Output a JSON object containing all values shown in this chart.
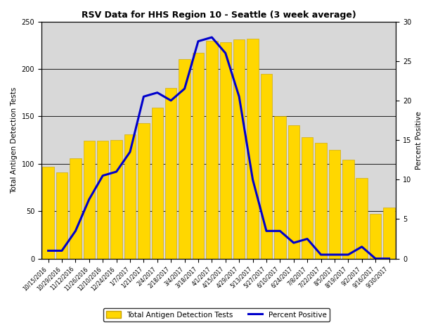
{
  "title": "RSV Data for HHS Region 10 - Seattle (3 week average)",
  "ylabel_left": "Total Antigen Detection Tests",
  "ylabel_right": "Percent Positive",
  "bar_color": "#FFD700",
  "bar_edge_color": "#C8A000",
  "line_color": "#0000CC",
  "bg_color": "#D8D8D8",
  "ylim_left": [
    0,
    250
  ],
  "ylim_right": [
    0,
    30
  ],
  "yticks_left": [
    0,
    50,
    100,
    150,
    200,
    250
  ],
  "yticks_right": [
    0,
    5,
    10,
    15,
    20,
    25,
    30
  ],
  "categories": [
    "10/15/2016",
    "10/29/2016",
    "11/12/2016",
    "11/26/2016",
    "12/10/2016",
    "12/24/2016",
    "1/7/2017",
    "1/21/2017",
    "2/4/2017",
    "2/18/2017",
    "3/4/2017",
    "3/18/2017",
    "4/1/2017",
    "4/15/2017",
    "4/29/2017",
    "5/13/2017",
    "5/27/2017",
    "6/10/2017",
    "6/24/2017",
    "7/8/2017",
    "7/22/2017",
    "8/5/2017",
    "8/19/2017",
    "9/2/2017",
    "9/16/2017",
    "9/30/2017"
  ],
  "bar_values": [
    97,
    91,
    106,
    124,
    124,
    125,
    131,
    143,
    159,
    180,
    210,
    217,
    230,
    228,
    231,
    232,
    195,
    150,
    141,
    128,
    122,
    115,
    104,
    85,
    47,
    54
  ],
  "percent_positive": [
    1.0,
    1.0,
    3.5,
    7.5,
    10.5,
    11.0,
    13.5,
    20.5,
    21.0,
    20.0,
    21.5,
    27.5,
    28.0,
    26.0,
    20.5,
    10.0,
    3.5,
    3.5,
    2.0,
    2.5,
    0.5,
    0.5,
    0.5,
    1.5,
    0.0,
    0.0
  ],
  "legend_bar_label": "Total Antigen Detection Tests",
  "legend_line_label": "Percent Positive",
  "figsize": [
    6.16,
    4.62
  ],
  "dpi": 100
}
